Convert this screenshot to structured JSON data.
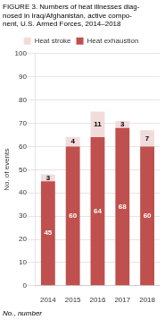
{
  "chart_data": {
    "type": "bar",
    "title": [
      "FIGURE 3. Numbers of heat illnesses diag-",
      "nosed in Iraq/Afghanistan, active compo-",
      "nent, U.S. Armed Forces, 2014–2018"
    ],
    "categories": [
      "2014",
      "2015",
      "2016",
      "2017",
      "2018"
    ],
    "series": [
      {
        "name": "Heat exhaustion",
        "color": "#c0504d",
        "values": [
          45,
          60,
          64,
          68,
          60
        ]
      },
      {
        "name": "Heat stroke",
        "color": "#f2dcdb",
        "values": [
          3,
          4,
          11,
          3,
          7
        ]
      }
    ],
    "stacked": true,
    "data_labels": true,
    "ylabel": "No. of events",
    "footnote": "No., number",
    "ylim": [
      0,
      100
    ],
    "yticks": [
      0,
      10,
      20,
      30,
      40,
      50,
      60,
      70,
      80,
      90,
      100
    ],
    "grid": true,
    "legend": "top"
  }
}
